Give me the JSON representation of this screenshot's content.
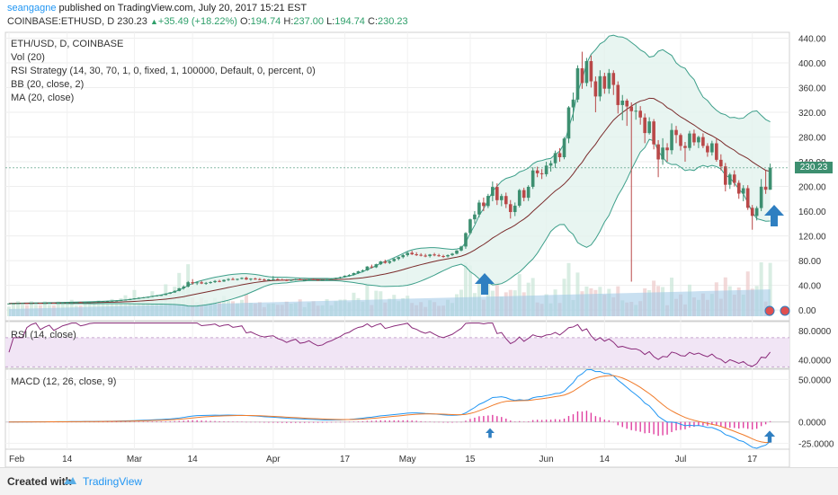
{
  "header": {
    "author": "seangagne",
    "published": "published on TradingView.com, July 20, 2017 15:21 EST",
    "symbol": "COINBASE:ETHUSD, D",
    "last": "230.23",
    "change": "+35.49 (+18.22%)",
    "o_label": "O:",
    "o": "194.74",
    "h_label": "H:",
    "h": "237.00",
    "l_label": "L:",
    "l": "194.74",
    "c_label": "C:",
    "c": "230.23"
  },
  "legend": {
    "symbol": "ETH/USD, D, COINBASE",
    "vol": "Vol (20)",
    "rsi_strategy": "RSI Strategy (14, 30, 70, 1, 0, fixed, 1, 100000, Default, 0, percent, 0)",
    "bb": "BB (20, close, 2)",
    "ma": "MA (20, close)",
    "rsi": "RSI (14, close)",
    "macd": "MACD (12, 26, close, 9)"
  },
  "footer": {
    "created": "Created with",
    "brand": "TradingView"
  },
  "colors": {
    "up": "#3d8f70",
    "down": "#b94848",
    "bb_line": "#3d9f8a",
    "bb_fill": "#e2f3ee",
    "ma": "#7a2b2b",
    "rsi": "#8a2a7a",
    "rsi_band": "#f1e5f5",
    "macd": "#2196f3",
    "signal": "#f07b2a",
    "hist": "#e040a0",
    "arrow": "#2f7fc1",
    "volume": "#9cc6e6"
  },
  "icons": [
    "up-arrow-icon",
    "tradingview-logo-icon",
    "flag-icon"
  ],
  "chart_data": [
    {
      "type": "candlestick",
      "title": "ETH/USD, D, COINBASE",
      "ylim": [
        -10,
        445
      ],
      "y_ticks": [
        "440.00",
        "400.00",
        "360.00",
        "320.00",
        "280.00",
        "240.00",
        "200.00",
        "160.00",
        "120.00",
        "80.00",
        "40.00",
        "0.00"
      ],
      "y_tick_values": [
        440,
        400,
        360,
        320,
        280,
        240,
        200,
        160,
        120,
        80,
        40,
        0
      ],
      "x_ticks": [
        "Feb",
        "14",
        "Mar",
        "14",
        "Apr",
        "17",
        "May",
        "15",
        "Jun",
        "14",
        "Jul",
        "17"
      ],
      "x_tick_days": [
        0,
        13,
        28,
        41,
        59,
        75,
        89,
        103,
        120,
        133,
        150,
        166
      ],
      "last_price": "230.23",
      "ohlc": [
        [
          10.5,
          10.8,
          10.2,
          10.6
        ],
        [
          10.6,
          11.0,
          10.4,
          10.8
        ],
        [
          10.8,
          11.2,
          10.6,
          11.0
        ],
        [
          11.0,
          11.4,
          10.8,
          11.2
        ],
        [
          11.2,
          11.5,
          10.9,
          11.1
        ],
        [
          11.1,
          11.4,
          10.8,
          11.3
        ],
        [
          11.3,
          11.7,
          11.1,
          11.5
        ],
        [
          11.5,
          11.8,
          11.2,
          11.4
        ],
        [
          11.4,
          11.8,
          11.2,
          11.6
        ],
        [
          11.6,
          12.0,
          11.4,
          11.8
        ],
        [
          11.8,
          12.1,
          11.5,
          11.7
        ],
        [
          11.7,
          12.0,
          11.5,
          11.9
        ],
        [
          11.9,
          12.4,
          11.7,
          12.2
        ],
        [
          12.2,
          12.6,
          12.0,
          12.4
        ],
        [
          12.4,
          12.8,
          12.2,
          12.7
        ],
        [
          12.7,
          13.1,
          12.4,
          12.9
        ],
        [
          12.9,
          13.3,
          12.6,
          12.8
        ],
        [
          12.8,
          13.2,
          12.5,
          13.0
        ],
        [
          13.0,
          13.5,
          12.8,
          13.3
        ],
        [
          13.3,
          13.8,
          13.0,
          13.6
        ],
        [
          13.6,
          14.2,
          13.3,
          13.9
        ],
        [
          13.9,
          14.5,
          13.6,
          14.3
        ],
        [
          14.3,
          14.9,
          14.0,
          14.6
        ],
        [
          14.6,
          15.3,
          14.3,
          15.0
        ],
        [
          15.0,
          15.8,
          14.7,
          15.5
        ],
        [
          15.5,
          16.4,
          15.2,
          16.1
        ],
        [
          16.1,
          17.0,
          15.8,
          16.8
        ],
        [
          16.8,
          18.0,
          16.5,
          17.6
        ],
        [
          17.6,
          19.2,
          17.3,
          18.9
        ],
        [
          18.9,
          20.3,
          18.5,
          19.6
        ],
        [
          19.6,
          21.0,
          19.0,
          20.5
        ],
        [
          20.5,
          21.8,
          19.8,
          21.4
        ],
        [
          21.4,
          23.0,
          21.0,
          22.7
        ],
        [
          22.7,
          24.2,
          22.0,
          23.6
        ],
        [
          23.6,
          24.8,
          22.9,
          24.3
        ],
        [
          24.3,
          27.0,
          24.0,
          26.5
        ],
        [
          26.5,
          29.0,
          26.0,
          28.4
        ],
        [
          28.4,
          31.8,
          27.8,
          30.9
        ],
        [
          30.9,
          35.8,
          30.4,
          35.2
        ],
        [
          35.2,
          40.0,
          33.0,
          38.0
        ],
        [
          38.0,
          47.0,
          36.5,
          45.0
        ],
        [
          45.0,
          50.0,
          41.0,
          43.5
        ],
        [
          43.5,
          46.0,
          40.5,
          44.8
        ],
        [
          44.8,
          47.2,
          42.0,
          43.0
        ],
        [
          43.0,
          45.5,
          40.8,
          44.0
        ],
        [
          44.0,
          46.5,
          42.5,
          45.2
        ],
        [
          45.2,
          48.5,
          43.8,
          47.0
        ],
        [
          47.0,
          49.0,
          45.0,
          46.2
        ],
        [
          46.2,
          49.5,
          45.5,
          48.8
        ],
        [
          48.8,
          51.5,
          47.0,
          50.1
        ],
        [
          50.1,
          52.5,
          48.6,
          49.2
        ],
        [
          49.2,
          51.0,
          47.8,
          50.4
        ],
        [
          50.4,
          53.0,
          49.5,
          52.0
        ],
        [
          52.0,
          54.0,
          48.5,
          49.5
        ],
        [
          49.5,
          51.5,
          47.5,
          50.8
        ],
        [
          50.8,
          52.5,
          49.0,
          50.0
        ],
        [
          50.0,
          51.8,
          48.2,
          49.3
        ],
        [
          49.3,
          51.0,
          47.6,
          48.9
        ],
        [
          48.9,
          50.2,
          47.0,
          49.6
        ],
        [
          49.6,
          55.0,
          48.8,
          50.0
        ],
        [
          50.0,
          51.6,
          48.4,
          49.1
        ],
        [
          49.1,
          50.8,
          47.6,
          48.6
        ],
        [
          48.6,
          50.0,
          47.0,
          47.8
        ],
        [
          47.8,
          49.5,
          46.8,
          48.9
        ],
        [
          48.9,
          50.6,
          47.8,
          49.8
        ],
        [
          49.8,
          51.0,
          48.2,
          48.5
        ],
        [
          48.5,
          50.0,
          47.2,
          48.9
        ],
        [
          48.9,
          50.5,
          47.8,
          49.9
        ],
        [
          49.9,
          51.2,
          48.6,
          49.0
        ],
        [
          49.0,
          50.4,
          47.9,
          48.3
        ],
        [
          48.3,
          49.8,
          47.5,
          48.7
        ],
        [
          48.7,
          50.5,
          47.9,
          50.0
        ],
        [
          50.0,
          51.5,
          49.2,
          50.8
        ],
        [
          50.8,
          52.5,
          50.0,
          52.1
        ],
        [
          52.1,
          54.0,
          51.0,
          53.4
        ],
        [
          53.4,
          56.0,
          52.5,
          55.6
        ],
        [
          55.6,
          58.0,
          54.2,
          56.8
        ],
        [
          56.8,
          60.5,
          55.8,
          59.9
        ],
        [
          59.9,
          63.5,
          58.5,
          62.7
        ],
        [
          62.7,
          65.8,
          61.0,
          64.2
        ],
        [
          64.2,
          71.0,
          63.5,
          70.4
        ],
        [
          70.4,
          73.5,
          67.5,
          69.2
        ],
        [
          69.2,
          75.0,
          68.0,
          74.1
        ],
        [
          74.1,
          79.5,
          72.8,
          78.6
        ],
        [
          78.6,
          81.5,
          75.0,
          76.4
        ],
        [
          76.4,
          80.0,
          74.5,
          79.2
        ],
        [
          79.2,
          84.0,
          78.0,
          82.8
        ],
        [
          82.8,
          86.5,
          80.5,
          85.6
        ],
        [
          85.6,
          90.5,
          83.5,
          88.9
        ],
        [
          88.9,
          94.0,
          86.5,
          92.6
        ],
        [
          92.6,
          96.0,
          89.0,
          90.2
        ],
        [
          90.2,
          93.5,
          87.5,
          89.4
        ],
        [
          89.4,
          92.0,
          86.8,
          88.1
        ],
        [
          88.1,
          91.0,
          85.5,
          87.3
        ],
        [
          87.3,
          90.8,
          85.0,
          89.9
        ],
        [
          89.9,
          92.5,
          87.0,
          88.6
        ],
        [
          88.6,
          91.0,
          86.2,
          87.4
        ],
        [
          87.4,
          89.5,
          84.5,
          86.8
        ],
        [
          86.8,
          90.0,
          85.0,
          88.9
        ],
        [
          88.9,
          92.5,
          87.5,
          91.2
        ],
        [
          91.2,
          97.0,
          90.0,
          96.3
        ],
        [
          96.3,
          104.0,
          95.0,
          102.8
        ],
        [
          102.8,
          126.0,
          99.0,
          124.5
        ],
        [
          124.5,
          148.0,
          122.0,
          146.8
        ],
        [
          146.8,
          160.0,
          140.0,
          154.6
        ],
        [
          154.6,
          178.0,
          150.0,
          173.9
        ],
        [
          173.9,
          182.0,
          160.0,
          168.3
        ],
        [
          168.3,
          188.0,
          165.0,
          184.7
        ],
        [
          184.7,
          208.0,
          176.0,
          199.2
        ],
        [
          199.2,
          205.0,
          170.0,
          177.8
        ],
        [
          177.8,
          188.0,
          168.0,
          184.5
        ],
        [
          184.5,
          190.0,
          165.0,
          171.3
        ],
        [
          171.3,
          178.0,
          148.0,
          158.6
        ],
        [
          158.6,
          174.0,
          152.0,
          168.9
        ],
        [
          168.9,
          196.0,
          166.0,
          194.1
        ],
        [
          194.1,
          198.0,
          176.0,
          181.7
        ],
        [
          181.7,
          202.0,
          176.5,
          199.4
        ],
        [
          199.4,
          231.0,
          196.0,
          225.9
        ],
        [
          225.9,
          232.0,
          215.0,
          221.3
        ],
        [
          221.3,
          228.0,
          212.0,
          219.8
        ],
        [
          219.8,
          240.0,
          216.0,
          233.7
        ],
        [
          233.7,
          242.0,
          224.0,
          237.6
        ],
        [
          237.6,
          258.0,
          230.0,
          253.9
        ],
        [
          253.9,
          262.0,
          240.0,
          247.3
        ],
        [
          247.3,
          280.0,
          244.0,
          277.5
        ],
        [
          277.5,
          330.0,
          270.0,
          327.9
        ],
        [
          327.9,
          352.0,
          306.0,
          340.6
        ],
        [
          340.6,
          396.0,
          336.0,
          391.2
        ],
        [
          391.2,
          418.0,
          358.0,
          367.4
        ],
        [
          367.4,
          408.0,
          362.0,
          402.8
        ],
        [
          402.8,
          412.0,
          360.0,
          370.1
        ],
        [
          370.1,
          378.0,
          320.0,
          345.6
        ],
        [
          345.6,
          388.0,
          338.0,
          378.4
        ],
        [
          378.4,
          384.0,
          350.0,
          358.2
        ],
        [
          358.2,
          390.0,
          350.0,
          383.6
        ],
        [
          383.6,
          388.0,
          348.0,
          364.3
        ],
        [
          364.3,
          370.0,
          318.0,
          331.7
        ],
        [
          331.7,
          348.0,
          307.0,
          338.9
        ],
        [
          338.9,
          342.0,
          298.0,
          329.4
        ],
        [
          329.4,
          336.0,
          46.0,
          321.8
        ],
        [
          321.8,
          334.0,
          308.0,
          322.5
        ],
        [
          322.5,
          330.0,
          300.0,
          311.6
        ],
        [
          311.6,
          318.0,
          270.0,
          286.4
        ],
        [
          286.4,
          312.0,
          284.0,
          305.2
        ],
        [
          305.2,
          309.0,
          260.0,
          268.1
        ],
        [
          268.1,
          275.0,
          215.0,
          243.7
        ],
        [
          243.7,
          278.0,
          235.0,
          262.9
        ],
        [
          262.9,
          270.0,
          240.0,
          258.6
        ],
        [
          258.6,
          302.0,
          252.0,
          291.4
        ],
        [
          291.4,
          298.0,
          270.0,
          283.2
        ],
        [
          283.2,
          286.0,
          258.0,
          265.5
        ],
        [
          265.5,
          272.0,
          240.0,
          262.3
        ],
        [
          262.3,
          290.0,
          258.0,
          285.7
        ],
        [
          285.7,
          292.0,
          266.0,
          271.4
        ],
        [
          271.4,
          282.0,
          262.0,
          279.9
        ],
        [
          279.9,
          286.0,
          262.0,
          265.6
        ],
        [
          265.6,
          270.0,
          248.0,
          255.2
        ],
        [
          255.2,
          274.0,
          250.0,
          269.8
        ],
        [
          269.8,
          278.0,
          240.0,
          243.1
        ],
        [
          243.1,
          252.0,
          226.0,
          232.4
        ],
        [
          232.4,
          238.0,
          192.0,
          202.7
        ],
        [
          202.7,
          222.0,
          196.0,
          219.3
        ],
        [
          219.3,
          226.0,
          200.0,
          205.8
        ],
        [
          205.8,
          210.0,
          180.0,
          188.4
        ],
        [
          188.4,
          202.0,
          176.0,
          197.1
        ],
        [
          197.1,
          202.0,
          162.0,
          165.4
        ],
        [
          165.4,
          170.0,
          130.0,
          152.3
        ],
        [
          152.3,
          168.0,
          145.0,
          165.0
        ],
        [
          165.0,
          212.0,
          160.0,
          199.6
        ],
        [
          199.6,
          226.0,
          188.0,
          194.7
        ],
        [
          194.7,
          237.0,
          194.7,
          230.2
        ]
      ],
      "volume_scale": "0-100 relative",
      "bb_upper_end": 300.0,
      "bb_lower_end": 156.0,
      "ma_end": 222.0
    },
    {
      "type": "line",
      "title": "RSI (14, close)",
      "ylim": [
        28,
        92
      ],
      "y_ticks": [
        "80.0000",
        "40.0000"
      ],
      "y_tick_values": [
        80,
        40
      ],
      "band": [
        30,
        70
      ]
    },
    {
      "type": "line",
      "title": "MACD (12, 26, close, 9)",
      "ylim": [
        -32,
        62
      ],
      "y_ticks": [
        "50.0000",
        "0.0000",
        "-25.0000"
      ],
      "y_tick_values": [
        50,
        0,
        -25
      ],
      "series": [
        {
          "name": "MACD",
          "end": -18
        },
        {
          "name": "Signal",
          "end": -14
        }
      ]
    }
  ]
}
